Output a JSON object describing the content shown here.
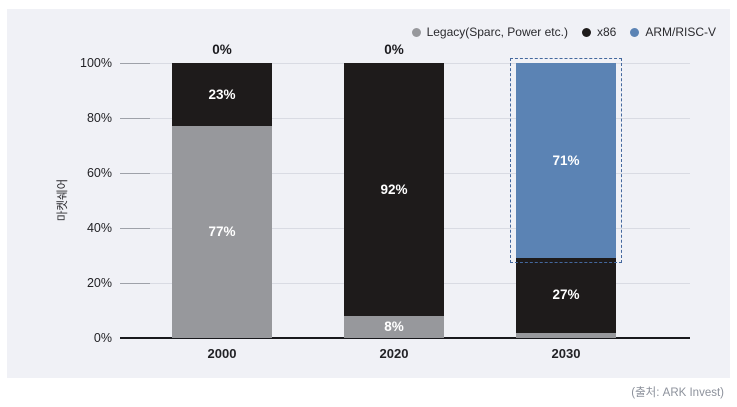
{
  "chart_data": {
    "type": "bar",
    "subtype": "stacked-vertical",
    "categories": [
      "2000",
      "2020",
      "2030"
    ],
    "series": [
      {
        "name": "Legacy(Sparc, Power etc.)",
        "color": "#97989c",
        "values": [
          77,
          8,
          2
        ]
      },
      {
        "name": "x86",
        "color": "#1e1b1b",
        "values": [
          23,
          92,
          27
        ]
      },
      {
        "name": "ARM/RISC-V",
        "color": "#5b83b4",
        "values": [
          0,
          0,
          71
        ]
      }
    ],
    "title": "",
    "xlabel": "",
    "ylabel": "마켓쉐어",
    "ylim": [
      0,
      100
    ],
    "yticks": [
      0,
      20,
      40,
      60,
      80,
      100
    ],
    "ytick_suffix": "%",
    "value_label_suffix": "%",
    "grid": "horizontal",
    "legend_position": "top-right",
    "zero_labels_above_bars": [
      "2000",
      "2020"
    ],
    "highlight": {
      "category": "2030",
      "series": "ARM/RISC-V",
      "style": "dashed-outline",
      "color": "#44689e"
    },
    "source": "(출처: ARK Invest)"
  },
  "panel": {
    "background": "#f0f1f6"
  }
}
